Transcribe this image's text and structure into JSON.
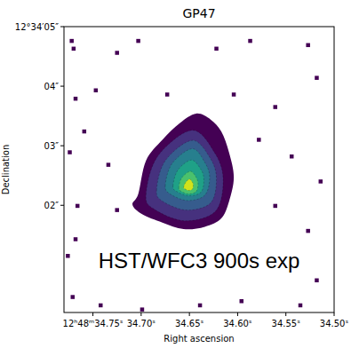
{
  "chart_data": {
    "type": "image",
    "title": "GP47",
    "x_label": "Right ascension",
    "y_label": "Declination",
    "annotations": [
      "HST/WFC3 900s exp"
    ],
    "grid": false,
    "xlim": [
      34.78,
      34.5
    ],
    "xticks": [
      {
        "value": 34.75,
        "label": "12ʰ48ᵐ34.75ˢ"
      },
      {
        "value": 34.7,
        "label": "34.70ˢ"
      },
      {
        "value": 34.65,
        "label": "34.65ˢ"
      },
      {
        "value": 34.6,
        "label": "34.60ˢ"
      },
      {
        "value": 34.55,
        "label": "34.55ˢ"
      },
      {
        "value": 34.5,
        "label": "34.50ˢ"
      }
    ],
    "ylim": [
      0.2,
      5.0
    ],
    "yticks": [
      {
        "value": 2,
        "label": "02″"
      },
      {
        "value": 3,
        "label": "03″"
      },
      {
        "value": 4,
        "label": "04″"
      },
      {
        "value": 5,
        "label": "12°34′05″"
      }
    ],
    "contours": [
      {
        "color": "#440154",
        "ra": [
          34.703,
          34.695,
          34.678,
          34.66,
          34.643,
          34.628,
          34.617,
          34.609,
          34.604,
          34.609,
          34.617,
          34.634,
          34.656,
          34.678,
          34.699,
          34.709
        ],
        "dec": [
          2.19,
          2.75,
          3.1,
          3.38,
          3.54,
          3.44,
          3.24,
          2.89,
          2.47,
          2.06,
          1.78,
          1.64,
          1.6,
          1.71,
          1.85,
          2.01
        ]
      },
      {
        "color": "#46317e",
        "ra": [
          34.695,
          34.683,
          34.647,
          34.623,
          34.615,
          34.623,
          34.655,
          34.687
        ],
        "dec": [
          2.18,
          2.82,
          3.26,
          2.86,
          2.42,
          1.9,
          1.74,
          1.94
        ]
      },
      {
        "color": "#365c8d",
        "ra": [
          34.684,
          34.675,
          34.647,
          34.628,
          34.622,
          34.628,
          34.653,
          34.678
        ],
        "dec": [
          2.26,
          2.75,
          3.09,
          2.78,
          2.44,
          2.04,
          1.92,
          2.07
        ]
      },
      {
        "color": "#277f8e",
        "ra": [
          34.675,
          34.668,
          34.647,
          34.634,
          34.629,
          34.634,
          34.652,
          34.67
        ],
        "dec": [
          2.33,
          2.7,
          2.95,
          2.72,
          2.47,
          2.17,
          2.08,
          2.19
        ]
      },
      {
        "color": "#1fa187",
        "ra": [
          34.667,
          34.662,
          34.648,
          34.638,
          34.635,
          34.638,
          34.651,
          34.664
        ],
        "dec": [
          2.33,
          2.59,
          2.76,
          2.6,
          2.43,
          2.22,
          2.16,
          2.24
        ]
      },
      {
        "color": "#4ac16d",
        "ra": [
          34.661,
          34.658,
          34.649,
          34.643,
          34.641,
          34.643,
          34.651,
          34.659
        ],
        "dec": [
          2.3,
          2.46,
          2.57,
          2.47,
          2.36,
          2.23,
          2.19,
          2.24
        ]
      },
      {
        "color": "#d2e21b",
        "ra": [
          34.656,
          34.654,
          34.65,
          34.647,
          34.646,
          34.647,
          34.651,
          34.655
        ],
        "dec": [
          2.3,
          2.38,
          2.44,
          2.39,
          2.34,
          2.27,
          2.25,
          2.28
        ]
      }
    ],
    "noise_pixels": {
      "color": "#440154",
      "ra": [
        34.77,
        34.772,
        34.725,
        34.703,
        34.622,
        34.587,
        34.527,
        34.768,
        34.747,
        34.561,
        34.518,
        34.774,
        34.759,
        34.544,
        34.514,
        34.766,
        34.725,
        34.561,
        34.527,
        34.776,
        34.768,
        34.544,
        34.518,
        34.771,
        34.742,
        34.699,
        34.639,
        34.596,
        34.535,
        34.673,
        34.604,
        34.578,
        34.734
      ],
      "dec": [
        4.63,
        4.76,
        4.56,
        4.76,
        4.63,
        4.76,
        4.69,
        3.79,
        3.93,
        3.65,
        4.14,
        2.89,
        3.24,
        2.82,
        2.4,
        1.99,
        1.92,
        1.99,
        1.57,
        1.15,
        1.43,
        1.01,
        0.74,
        0.46,
        0.32,
        0.25,
        0.32,
        0.39,
        0.32,
        3.86,
        3.86,
        3.1,
        2.68
      ]
    }
  }
}
